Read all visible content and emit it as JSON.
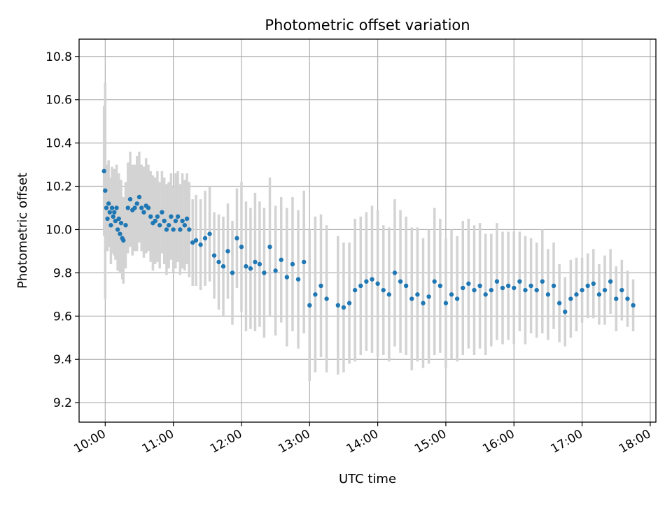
{
  "chart_data": {
    "type": "scatter",
    "title": "Photometric offset variation",
    "xlabel": "UTC time",
    "ylabel": "Photometric offset",
    "x_ticks": [
      "10:00",
      "11:00",
      "12:00",
      "13:00",
      "14:00",
      "15:00",
      "16:00",
      "17:00",
      "18:00"
    ],
    "x_range": [
      "09:37",
      "18:05"
    ],
    "y_ticks": [
      9.2,
      9.4,
      9.6,
      9.8,
      10.0,
      10.2,
      10.4,
      10.6,
      10.8
    ],
    "ylim": [
      9.11,
      10.88
    ],
    "grid": true,
    "error_bars": true,
    "point_color": "#1f77b4",
    "errorbar_color": "#d3d3d3",
    "series": [
      {
        "x": [
          "09:59",
          "10:00",
          "10:01",
          "10:02",
          "10:03",
          "10:04",
          "10:05",
          "10:06",
          "10:07",
          "10:08",
          "10:09",
          "10:10",
          "10:11",
          "10:12",
          "10:13",
          "10:14",
          "10:15",
          "10:16",
          "10:18",
          "10:20",
          "10:22",
          "10:24",
          "10:26",
          "10:28",
          "10:30",
          "10:32",
          "10:34",
          "10:36",
          "10:38",
          "10:40",
          "10:42",
          "10:44",
          "10:46",
          "10:48",
          "10:50",
          "10:52",
          "10:54",
          "10:56",
          "10:58",
          "11:00",
          "11:02",
          "11:04",
          "11:06",
          "11:08",
          "11:10",
          "11:12",
          "11:14",
          "11:17",
          "11:20",
          "11:24",
          "11:28",
          "11:32",
          "11:36",
          "11:40",
          "11:44",
          "11:48",
          "11:52",
          "11:56",
          "12:00",
          "12:04",
          "12:08",
          "12:12",
          "12:16",
          "12:20",
          "12:25",
          "12:30",
          "12:35",
          "12:40",
          "12:45",
          "12:50",
          "12:55",
          "13:00",
          "13:05",
          "13:10",
          "13:15",
          "13:25",
          "13:30",
          "13:35",
          "13:40",
          "13:45",
          "13:50",
          "13:55",
          "14:00",
          "14:05",
          "14:10",
          "14:15",
          "14:20",
          "14:25",
          "14:30",
          "14:35",
          "14:40",
          "14:45",
          "14:50",
          "14:55",
          "15:00",
          "15:05",
          "15:10",
          "15:15",
          "15:20",
          "15:25",
          "15:30",
          "15:35",
          "15:40",
          "15:45",
          "15:50",
          "15:55",
          "16:00",
          "16:05",
          "16:10",
          "16:15",
          "16:20",
          "16:25",
          "16:30",
          "16:35",
          "16:40",
          "16:45",
          "16:50",
          "16:55",
          "17:00",
          "17:05",
          "17:10",
          "17:15",
          "17:20",
          "17:25",
          "17:30",
          "17:35",
          "17:40",
          "17:45"
        ],
        "y": [
          10.27,
          10.18,
          10.1,
          10.05,
          10.12,
          10.08,
          10.02,
          10.1,
          10.06,
          10.08,
          10.04,
          10.1,
          10.0,
          10.05,
          9.98,
          10.03,
          9.96,
          9.95,
          10.02,
          10.1,
          10.14,
          10.09,
          10.1,
          10.12,
          10.15,
          10.1,
          10.08,
          10.11,
          10.1,
          10.06,
          10.03,
          10.04,
          10.06,
          10.02,
          10.08,
          10.04,
          10.0,
          10.02,
          10.06,
          10.0,
          10.04,
          10.06,
          10.0,
          10.04,
          10.02,
          10.05,
          10.0,
          9.94,
          9.95,
          9.93,
          9.96,
          9.98,
          9.88,
          9.85,
          9.83,
          9.9,
          9.8,
          9.96,
          9.92,
          9.83,
          9.82,
          9.85,
          9.84,
          9.8,
          9.92,
          9.81,
          9.86,
          9.78,
          9.84,
          9.77,
          9.85,
          9.65,
          9.7,
          9.74,
          9.68,
          9.65,
          9.64,
          9.66,
          9.72,
          9.74,
          9.76,
          9.77,
          9.75,
          9.72,
          9.7,
          9.8,
          9.76,
          9.74,
          9.68,
          9.7,
          9.66,
          9.69,
          9.76,
          9.74,
          9.66,
          9.7,
          9.68,
          9.73,
          9.75,
          9.72,
          9.74,
          9.7,
          9.72,
          9.76,
          9.73,
          9.74,
          9.73,
          9.76,
          9.72,
          9.74,
          9.72,
          9.76,
          9.7,
          9.74,
          9.66,
          9.62,
          9.68,
          9.7,
          9.72,
          9.74,
          9.75,
          9.7,
          9.72,
          9.76,
          9.68,
          9.72,
          9.68,
          9.65
        ],
        "yerr": [
          0.3,
          0.5,
          0.2,
          0.15,
          0.2,
          0.16,
          0.18,
          0.19,
          0.17,
          0.2,
          0.18,
          0.2,
          0.19,
          0.21,
          0.18,
          0.2,
          0.19,
          0.2,
          0.2,
          0.21,
          0.22,
          0.21,
          0.2,
          0.22,
          0.21,
          0.2,
          0.21,
          0.22,
          0.2,
          0.21,
          0.22,
          0.2,
          0.21,
          0.2,
          0.19,
          0.2,
          0.21,
          0.2,
          0.2,
          0.2,
          0.22,
          0.21,
          0.21,
          0.22,
          0.21,
          0.21,
          0.22,
          0.2,
          0.21,
          0.21,
          0.22,
          0.22,
          0.2,
          0.22,
          0.23,
          0.22,
          0.24,
          0.23,
          0.3,
          0.3,
          0.28,
          0.32,
          0.29,
          0.3,
          0.32,
          0.3,
          0.29,
          0.32,
          0.31,
          0.32,
          0.33,
          0.35,
          0.36,
          0.33,
          0.34,
          0.32,
          0.3,
          0.28,
          0.33,
          0.32,
          0.32,
          0.34,
          0.34,
          0.3,
          0.31,
          0.34,
          0.33,
          0.32,
          0.33,
          0.31,
          0.3,
          0.31,
          0.34,
          0.31,
          0.3,
          0.3,
          0.29,
          0.31,
          0.3,
          0.3,
          0.29,
          0.28,
          0.26,
          0.27,
          0.26,
          0.25,
          0.26,
          0.23,
          0.25,
          0.22,
          0.22,
          0.24,
          0.21,
          0.2,
          0.18,
          0.16,
          0.18,
          0.17,
          0.15,
          0.15,
          0.16,
          0.14,
          0.16,
          0.15,
          0.15,
          0.14,
          0.13,
          0.12
        ]
      }
    ]
  }
}
